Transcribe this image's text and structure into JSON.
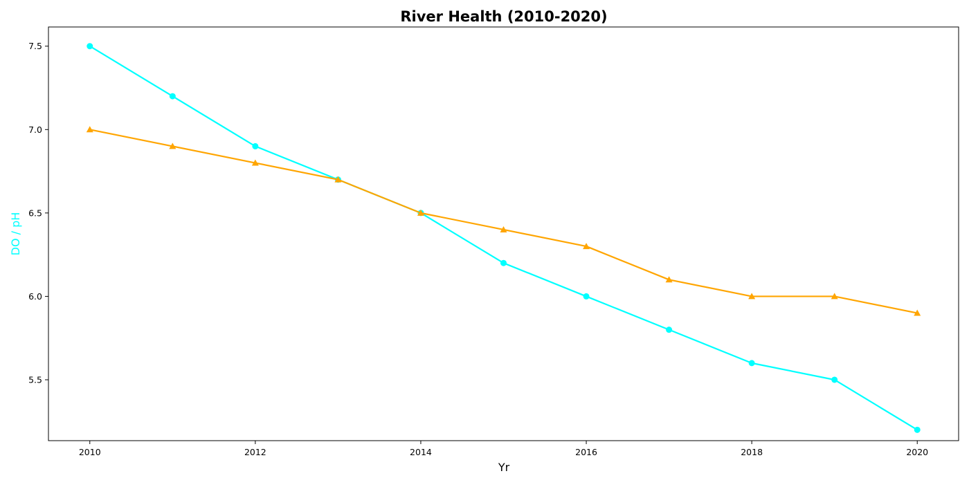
{
  "chart_data": {
    "type": "line",
    "title": "River Health (2010-2020)",
    "xlabel": "Yr",
    "ylabel": "DO / pH",
    "x": [
      2010,
      2011,
      2012,
      2013,
      2014,
      2015,
      2016,
      2017,
      2018,
      2019,
      2020
    ],
    "xlim": [
      2009.5,
      2020.5
    ],
    "ylim": [
      5.135,
      7.615
    ],
    "xticks": [
      2010,
      2012,
      2014,
      2016,
      2018,
      2020
    ],
    "yticks": [
      5.5,
      6.0,
      6.5,
      7.0,
      7.5
    ],
    "ytick_labels": [
      "5.5",
      "6.0",
      "6.5",
      "7.0",
      "7.5"
    ],
    "grid": false,
    "series": [
      {
        "values": [
          7.5,
          7.2,
          6.9,
          6.7,
          6.5,
          6.2,
          6.0,
          5.8,
          5.6,
          5.5,
          5.2
        ],
        "color": "#00FFFF",
        "marker": "circle"
      },
      {
        "values": [
          7.0,
          6.9,
          6.8,
          6.7,
          6.5,
          6.4,
          6.3,
          6.1,
          6.0,
          6.0,
          5.9
        ],
        "color": "#FFA500",
        "marker": "triangle"
      }
    ],
    "colors": {
      "ylabel": "#00FFFF",
      "axes": "#000000",
      "background": "#FFFFFF"
    }
  }
}
